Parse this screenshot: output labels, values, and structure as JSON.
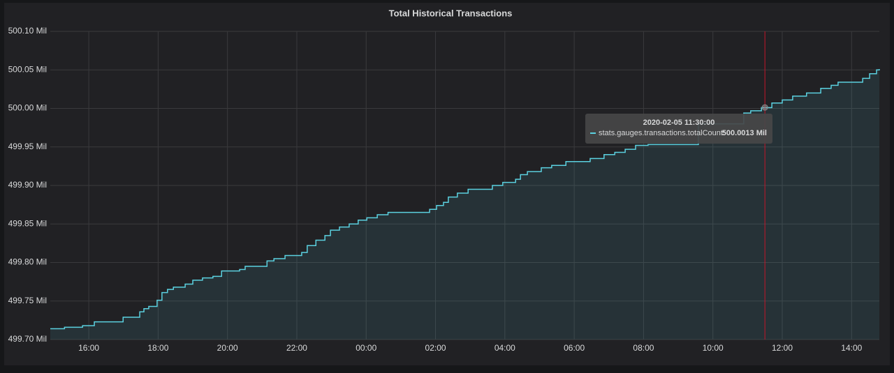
{
  "chart_data": {
    "type": "step-line",
    "title": "Total Historical Transactions",
    "x": [
      14.89,
      15.3,
      15.82,
      16.16,
      16.99,
      17.47,
      17.59,
      17.73,
      17.97,
      18.11,
      18.27,
      18.44,
      18.78,
      19.0,
      19.28,
      19.58,
      19.83,
      20.35,
      20.51,
      21.14,
      21.34,
      21.66,
      22.14,
      22.3,
      22.55,
      22.81,
      22.97,
      23.23,
      23.51,
      23.77,
      24.02,
      24.32,
      24.63,
      25.83,
      26.03,
      26.23,
      26.37,
      26.63,
      26.94,
      27.64,
      27.94,
      28.31,
      28.45,
      28.65,
      29.05,
      29.35,
      29.76,
      30.46,
      30.86,
      31.17,
      31.47,
      31.77,
      32.13,
      33.58,
      34.89,
      35.09,
      35.4,
      35.7,
      36.0,
      36.3,
      36.7,
      37.11,
      37.41,
      37.61,
      38.32,
      38.52,
      38.72,
      38.8
    ],
    "series": [
      {
        "name": "stats.gauges.transactions.totalCount",
        "color": "#5bd1e0",
        "values": [
          499.714,
          499.716,
          499.718,
          499.723,
          499.729,
          499.736,
          499.74,
          499.743,
          499.751,
          499.761,
          499.765,
          499.768,
          499.772,
          499.777,
          499.78,
          499.782,
          499.789,
          499.791,
          499.795,
          499.802,
          499.805,
          499.809,
          499.813,
          499.822,
          499.829,
          499.835,
          499.842,
          499.846,
          499.85,
          499.855,
          499.858,
          499.862,
          499.865,
          499.869,
          499.874,
          499.878,
          499.885,
          499.89,
          499.895,
          499.9,
          499.904,
          499.908,
          499.914,
          499.918,
          499.923,
          499.926,
          499.931,
          499.935,
          499.94,
          499.943,
          499.947,
          499.952,
          499.953,
          499.98,
          499.994,
          499.997,
          500.001,
          500.007,
          500.011,
          500.016,
          500.02,
          500.026,
          500.03,
          500.034,
          500.039,
          500.045,
          500.05,
          500.051
        ]
      }
    ],
    "xlim": [
      14.89,
      38.8
    ],
    "xticks": [
      {
        "value": 16,
        "label": "16:00"
      },
      {
        "value": 18,
        "label": "18:00"
      },
      {
        "value": 20,
        "label": "20:00"
      },
      {
        "value": 22,
        "label": "22:00"
      },
      {
        "value": 24,
        "label": "00:00"
      },
      {
        "value": 26,
        "label": "02:00"
      },
      {
        "value": 28,
        "label": "04:00"
      },
      {
        "value": 30,
        "label": "06:00"
      },
      {
        "value": 32,
        "label": "08:00"
      },
      {
        "value": 34,
        "label": "10:00"
      },
      {
        "value": 36,
        "label": "12:00"
      },
      {
        "value": 38,
        "label": "14:00"
      }
    ],
    "ylim": [
      499.7,
      500.1
    ],
    "yticks": [
      {
        "value": 499.7,
        "label": "499.70 Mil"
      },
      {
        "value": 499.75,
        "label": "499.75 Mil"
      },
      {
        "value": 499.8,
        "label": "499.80 Mil"
      },
      {
        "value": 499.85,
        "label": "499.85 Mil"
      },
      {
        "value": 499.9,
        "label": "499.90 Mil"
      },
      {
        "value": 499.95,
        "label": "499.95 Mil"
      },
      {
        "value": 500.0,
        "label": "500.00 Mil"
      },
      {
        "value": 500.05,
        "label": "500.05 Mil"
      },
      {
        "value": 500.1,
        "label": "500.10 Mil"
      }
    ],
    "grid": true,
    "tooltip": {
      "time": "2020-02-05 11:30:00",
      "x": 35.5,
      "label": "stats.gauges.transactions.totalCount:",
      "value": 500.0013,
      "value_label": "500.0013 Mil",
      "cursor_color": "#c4162a"
    }
  }
}
